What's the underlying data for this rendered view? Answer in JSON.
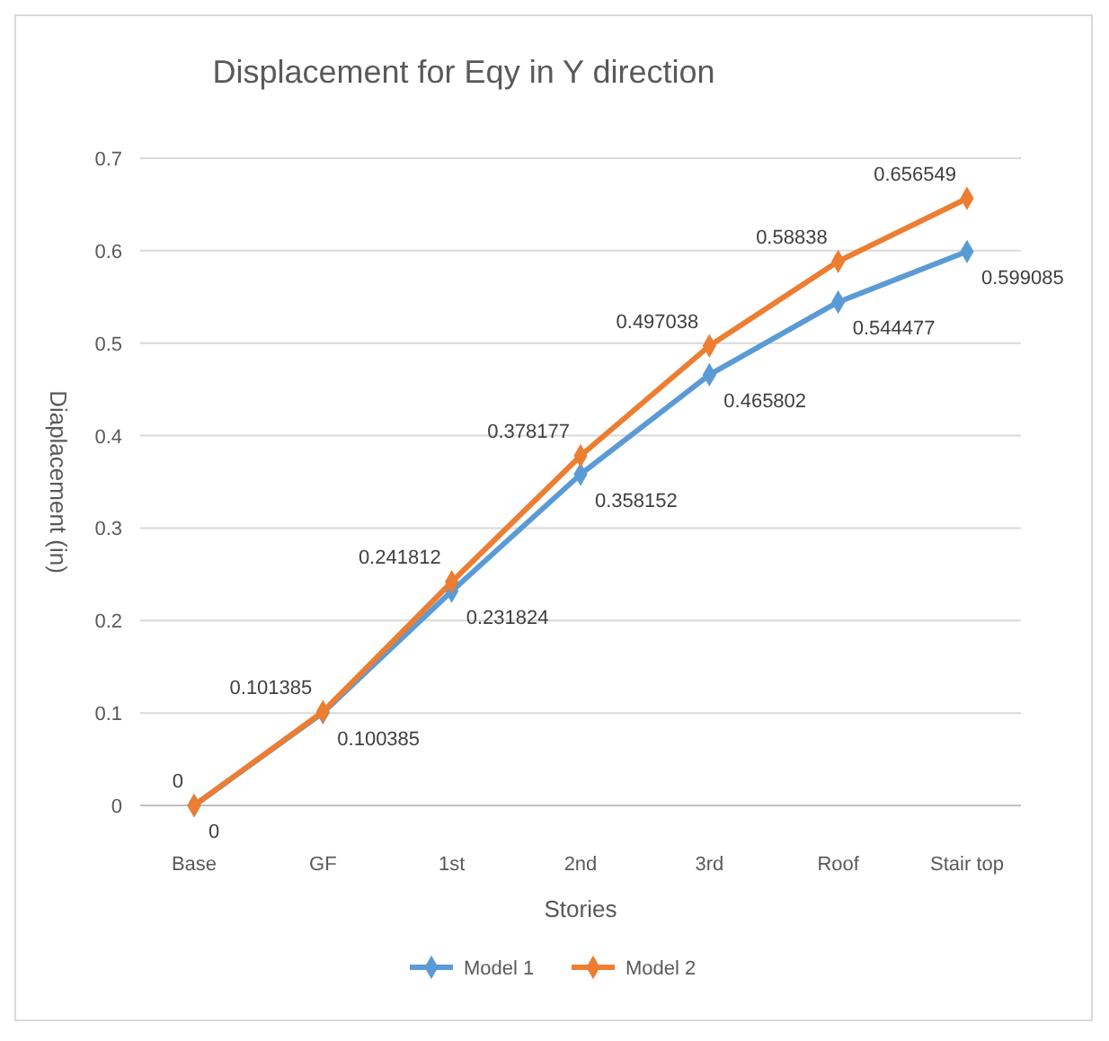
{
  "chart_data": {
    "type": "line",
    "title": "Displacement for Eqy in Y direction",
    "xlabel": "Stories",
    "ylabel": "Diaplacement (in)",
    "categories": [
      "Base",
      "GF",
      "1st",
      "2nd",
      "3rd",
      "Roof",
      "Stair top"
    ],
    "series": [
      {
        "name": "Model 1",
        "color": "#5b9bd5",
        "values": [
          0,
          0.100385,
          0.231824,
          0.358152,
          0.465802,
          0.544477,
          0.599085
        ]
      },
      {
        "name": "Model 2",
        "color": "#ed7d31",
        "values": [
          0,
          0.101385,
          0.241812,
          0.378177,
          0.497038,
          0.58838,
          0.656549
        ]
      }
    ],
    "ylim": [
      0,
      0.7
    ],
    "yticks": [
      0,
      0.1,
      0.2,
      0.3,
      0.4,
      0.5,
      0.6,
      0.7
    ],
    "grid": "y",
    "legend": "bottom",
    "marker": "diamond",
    "line_style": "solid",
    "data_labels": true
  }
}
